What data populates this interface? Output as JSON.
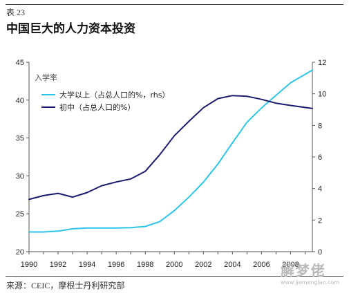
{
  "header": {
    "table_label": "表 23",
    "title": "中国巨大的人力资本投资"
  },
  "footer": {
    "source": "来源：CEIC，摩根士丹利研究部"
  },
  "watermark": {
    "text": "解梦佬",
    "url": "www.jiemenglao.com"
  },
  "colors": {
    "college": "#2ec4e8",
    "middle": "#1a1a6e",
    "axis": "#555555"
  },
  "chart_data": {
    "type": "line",
    "title": "中国巨大的人力资本投资",
    "legend_title": "入学率",
    "legend_position": "top-left",
    "grid": false,
    "x_ticks": [
      "1990",
      "1992",
      "1994",
      "1996",
      "1998",
      "2000",
      "2002",
      "2004",
      "2006",
      "2008"
    ],
    "xlim": [
      1990,
      2009.5
    ],
    "ylim_left": [
      20,
      45
    ],
    "y_ticks_left": [
      "20",
      "25",
      "30",
      "35",
      "40",
      "45"
    ],
    "ylim_right": [
      0,
      12
    ],
    "y_ticks_right": [
      "0",
      "2",
      "4",
      "6",
      "8",
      "10",
      "12"
    ],
    "series": [
      {
        "name": "大学以上（占总人口的%，rhs）",
        "axis": "right",
        "color": "#2ec4e8",
        "x": [
          1990,
          1991,
          1992,
          1993,
          1994,
          1995,
          1996,
          1997,
          1998,
          1999,
          2000,
          2001,
          2002,
          2003,
          2004,
          2005,
          2006,
          2007,
          2008,
          2009.5
        ],
        "y": [
          1.25,
          1.25,
          1.3,
          1.45,
          1.5,
          1.5,
          1.5,
          1.52,
          1.6,
          1.9,
          2.6,
          3.45,
          4.4,
          5.55,
          6.9,
          8.2,
          9.1,
          9.9,
          10.7,
          11.5
        ]
      },
      {
        "name": "初中（占总人口的%）",
        "axis": "left",
        "color": "#1a1a6e",
        "x": [
          1990,
          1991,
          1992,
          1993,
          1994,
          1995,
          1996,
          1997,
          1998,
          1999,
          2000,
          2001,
          2002,
          2003,
          2004,
          2005,
          2006,
          2007,
          2008,
          2009.5
        ],
        "y": [
          26.9,
          27.4,
          27.7,
          27.2,
          27.8,
          28.7,
          29.2,
          29.6,
          30.6,
          32.8,
          35.3,
          37.2,
          39.0,
          40.2,
          40.6,
          40.5,
          40.1,
          39.6,
          39.3,
          38.9
        ]
      }
    ]
  }
}
